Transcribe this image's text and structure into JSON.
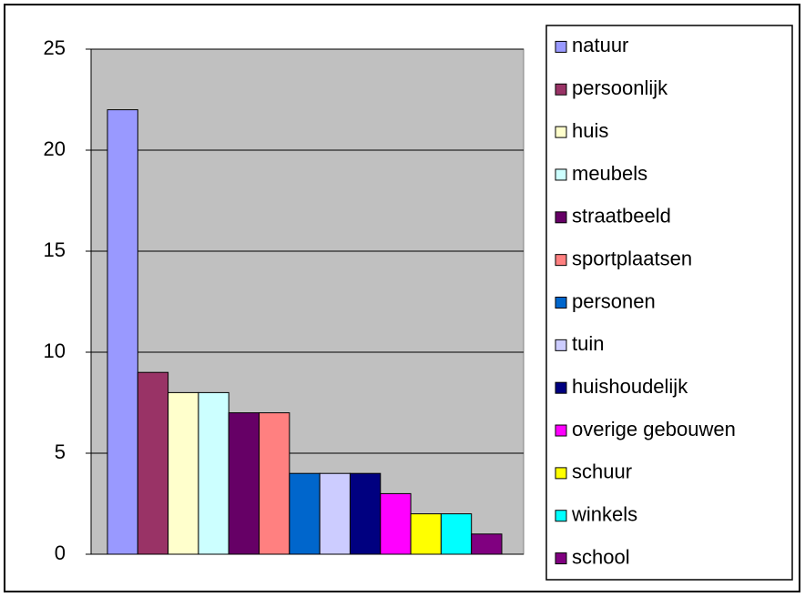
{
  "chart_data": {
    "type": "bar",
    "series": [
      {
        "name": "natuur",
        "color": "#9999ff",
        "values": [
          22
        ]
      },
      {
        "name": "persoonlijk",
        "color": "#993366",
        "values": [
          9
        ]
      },
      {
        "name": "huis",
        "color": "#ffffcc",
        "values": [
          8
        ]
      },
      {
        "name": "meubels",
        "color": "#ccffff",
        "values": [
          8
        ]
      },
      {
        "name": "straatbeeld",
        "color": "#660066",
        "values": [
          7
        ]
      },
      {
        "name": "sportplaatsen",
        "color": "#ff8080",
        "values": [
          7
        ]
      },
      {
        "name": "personen",
        "color": "#0066cc",
        "values": [
          4
        ]
      },
      {
        "name": "tuin",
        "color": "#ccccff",
        "values": [
          4
        ]
      },
      {
        "name": "huishoudelijk",
        "color": "#000080",
        "values": [
          4
        ]
      },
      {
        "name": "overige gebouwen",
        "color": "#ff00ff",
        "values": [
          3
        ]
      },
      {
        "name": "schuur",
        "color": "#ffff00",
        "values": [
          2
        ]
      },
      {
        "name": "winkels",
        "color": "#00ffff",
        "values": [
          2
        ]
      },
      {
        "name": "school",
        "color": "#800080",
        "values": [
          1
        ]
      }
    ],
    "ylim": [
      0,
      25
    ],
    "yticks": [
      0,
      5,
      10,
      15,
      20,
      25
    ],
    "grid": true,
    "plot_color": "#c0c0c0",
    "legend": "right"
  }
}
